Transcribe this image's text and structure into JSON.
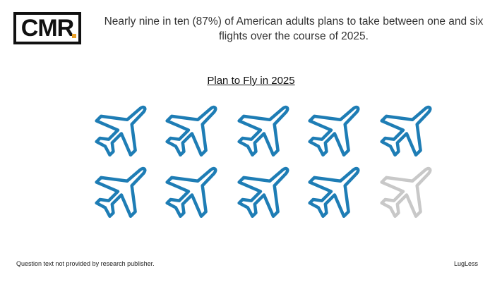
{
  "logo": {
    "text": "CMR",
    "accent_color": "#e8a02a"
  },
  "headline": "Nearly nine in ten (87%) of American adults plans to take between one and six flights over the course of 2025.",
  "chart_data": {
    "type": "pictograph",
    "title": "Plan to Fly in 2025",
    "icon": "airplane-icon",
    "total_icons": 10,
    "filled_icons": 9,
    "percent": 87,
    "filled_color": "#1e7db5",
    "empty_color": "#c8c8c8"
  },
  "footnote": "Question text not provided by research publisher.",
  "source": "LugLess"
}
